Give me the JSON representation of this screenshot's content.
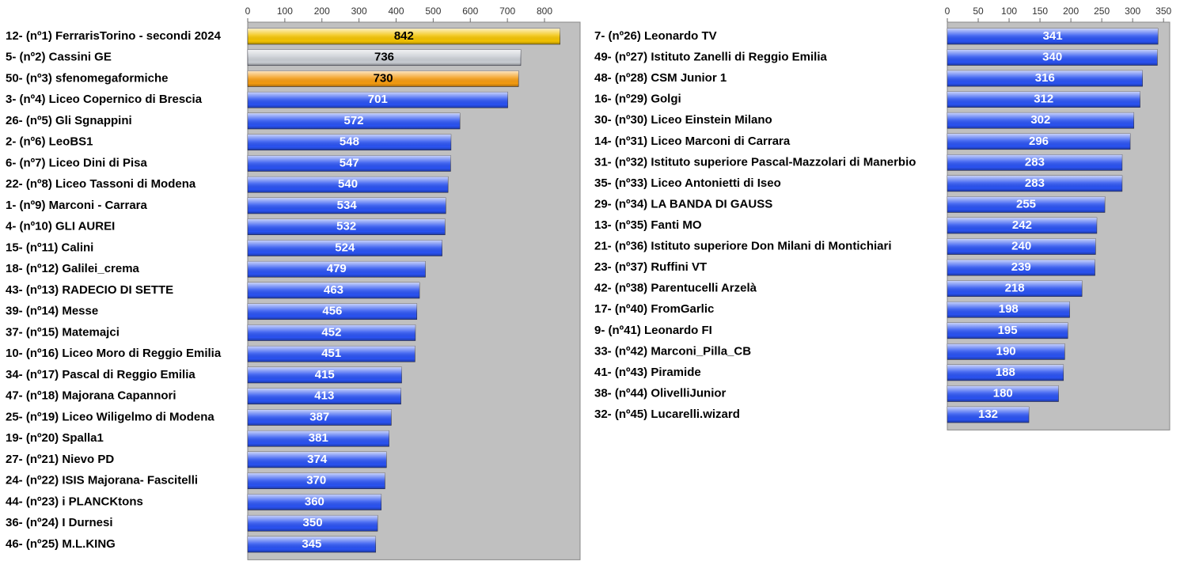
{
  "chart_data": [
    {
      "type": "bar",
      "orientation": "horizontal",
      "categories": [
        "12- (nº1) FerrarisTorino - secondi 2024",
        "5- (nº2) Cassini GE",
        "50- (nº3) sfenomegaformiche",
        "3- (nº4) Liceo Copernico di Brescia",
        "26- (nº5) Gli Sgnappini",
        "2- (nº6) LeoBS1",
        "6- (nº7) Liceo Dini di Pisa",
        "22- (nº8) Liceo Tassoni di Modena",
        "1- (nº9) Marconi - Carrara",
        "4- (nº10) GLI AUREI",
        "15- (nº11) Calini",
        "18- (nº12) Galilei_crema",
        "43- (nº13) RADECIO DI SETTE",
        "39- (nº14) Messe",
        "37- (nº15) Matemajci",
        "10- (nº16) Liceo Moro di Reggio Emilia",
        "34- (nº17) Pascal di Reggio Emilia",
        "47- (nº18) Majorana Capannori",
        "25- (nº19) Liceo Wiligelmo di Modena",
        "19- (nº20) Spalla1",
        "27- (nº21) Nievo PD",
        "24- (nº22) ISIS Majorana- Fascitelli",
        "44- (nº23) i PLANCKtons",
        "36- (nº24) I Durnesi",
        "46- (nº25) M.L.KING"
      ],
      "values": [
        842,
        736,
        730,
        701,
        572,
        548,
        547,
        540,
        534,
        532,
        524,
        479,
        463,
        456,
        452,
        451,
        415,
        413,
        387,
        381,
        374,
        370,
        360,
        350,
        345
      ],
      "colors": [
        "#f2c200",
        "#c8ccd2",
        "#f39a10",
        "#2a52f0",
        "#2a52f0",
        "#2a52f0",
        "#2a52f0",
        "#2a52f0",
        "#2a52f0",
        "#2a52f0",
        "#2a52f0",
        "#2a52f0",
        "#2a52f0",
        "#2a52f0",
        "#2a52f0",
        "#2a52f0",
        "#2a52f0",
        "#2a52f0",
        "#2a52f0",
        "#2a52f0",
        "#2a52f0",
        "#2a52f0",
        "#2a52f0",
        "#2a52f0",
        "#2a52f0"
      ],
      "xlim": [
        0,
        896
      ],
      "xticks": [
        0,
        100,
        200,
        300,
        400,
        500,
        600,
        700,
        800
      ]
    },
    {
      "type": "bar",
      "orientation": "horizontal",
      "categories": [
        "7- (nº26) Leonardo TV",
        "49- (nº27) Istituto Zanelli di Reggio Emilia",
        "48- (nº28) CSM Junior 1",
        "16- (nº29) Golgi",
        "30- (nº30) Liceo Einstein Milano",
        "14- (nº31) Liceo Marconi di Carrara",
        "31- (nº32) Istituto superiore Pascal-Mazzolari di Manerbio",
        "35- (nº33) Liceo Antonietti di Iseo",
        "29- (nº34) LA BANDA DI GAUSS",
        "13- (nº35) Fanti MO",
        "21- (nº36) Istituto superiore Don Milani di Montichiari",
        "23- (nº37) Ruffini VT",
        "42- (nº38) Parentucelli Arzelà",
        "17- (nº40) FromGarlic",
        "9- (nº41) Leonardo FI",
        "33- (nº42) Marconi_Pilla_CB",
        "41- (nº43) Piramide",
        "38- (nº44) OlivelliJunior",
        "32- (nº45) Lucarelli.wizard"
      ],
      "values": [
        341,
        340,
        316,
        312,
        302,
        296,
        283,
        283,
        255,
        242,
        240,
        239,
        218,
        198,
        195,
        190,
        188,
        180,
        132
      ],
      "colors": [
        "#2a52f0",
        "#2a52f0",
        "#2a52f0",
        "#2a52f0",
        "#2a52f0",
        "#2a52f0",
        "#2a52f0",
        "#2a52f0",
        "#2a52f0",
        "#2a52f0",
        "#2a52f0",
        "#2a52f0",
        "#2a52f0",
        "#2a52f0",
        "#2a52f0",
        "#2a52f0",
        "#2a52f0",
        "#2a52f0",
        "#2a52f0"
      ],
      "xlim": [
        0,
        360
      ],
      "xticks": [
        0,
        50,
        100,
        150,
        200,
        250,
        300,
        350
      ]
    }
  ]
}
